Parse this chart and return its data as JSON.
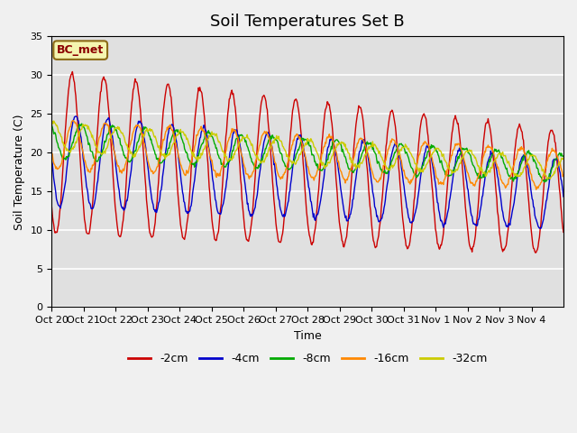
{
  "title": "Soil Temperatures Set B",
  "xlabel": "Time",
  "ylabel": "Soil Temperature (C)",
  "ylim": [
    0,
    35
  ],
  "legend_label": "BC_met",
  "series_colors": {
    "-2cm": "#cc0000",
    "-4cm": "#0000cc",
    "-8cm": "#00aa00",
    "-16cm": "#ff8800",
    "-32cm": "#cccc00"
  },
  "series_labels": [
    "-2cm",
    "-4cm",
    "-8cm",
    "-16cm",
    "-32cm"
  ],
  "xtick_labels": [
    "Oct 20",
    "Oct 21",
    "Oct 22",
    "Oct 23",
    "Oct 24",
    "Oct 25",
    "Oct 26",
    "Oct 27",
    "Oct 28",
    "Oct 29",
    "Oct 30",
    "Oct 31",
    "Nov 1",
    "Nov 2",
    "Nov 3",
    "Nov 4"
  ],
  "n_days": 16,
  "pts_per_day": 48,
  "title_fontsize": 13,
  "axis_fontsize": 9,
  "tick_fontsize": 8
}
